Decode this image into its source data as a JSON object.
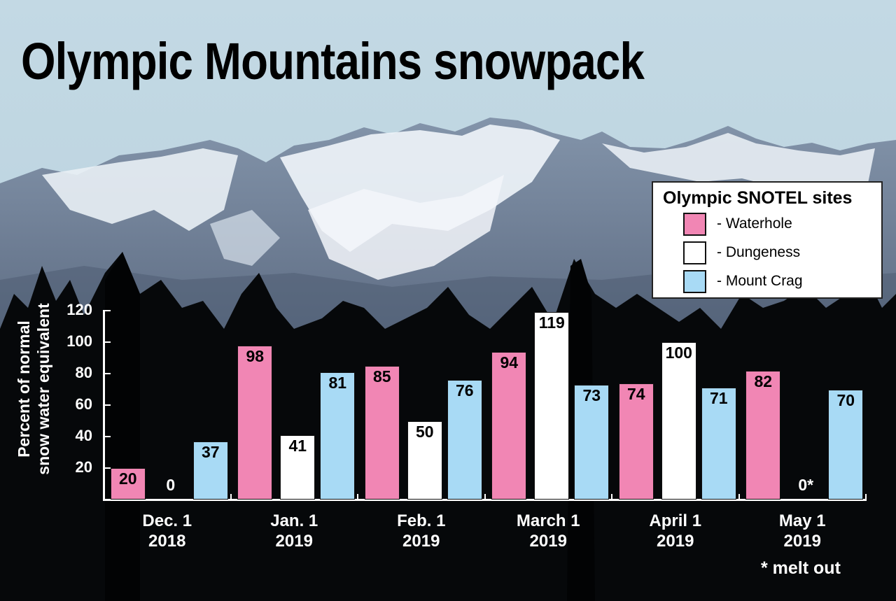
{
  "title": "Olympic Mountains snowpack",
  "background": {
    "sky_color": "#bfd6e2",
    "mountain_snow_color": "#e8eef4",
    "mountain_rock_color": "#6f7f95",
    "forest_color": "#050607"
  },
  "legend": {
    "title": "Olympic SNOTEL sites",
    "items": [
      {
        "label": "- Waterhole",
        "color": "#f186b4"
      },
      {
        "label": "- Dungeness",
        "color": "#ffffff"
      },
      {
        "label": "- Mount Crag",
        "color": "#a8daf5"
      }
    ]
  },
  "y_axis": {
    "label_line1": "Percent of normal",
    "label_line2": "snow water equivalent",
    "ticks": [
      "20",
      "40",
      "60",
      "80",
      "100",
      "120"
    ]
  },
  "footnote": "* melt out",
  "chart_data": {
    "type": "bar",
    "title": "Olympic Mountains snowpack",
    "xlabel": "",
    "ylabel": "Percent of normal snow water equivalent",
    "ylim": [
      0,
      120
    ],
    "yticks": [
      20,
      40,
      60,
      80,
      100,
      120
    ],
    "grid": false,
    "legend_position": "upper right",
    "categories": [
      "Dec. 1 2018",
      "Jan. 1 2019",
      "Feb. 1 2019",
      "March 1 2019",
      "April 1 2019",
      "May 1 2019"
    ],
    "category_lines": [
      [
        "Dec. 1",
        "2018"
      ],
      [
        "Jan. 1",
        "2019"
      ],
      [
        "Feb. 1",
        "2019"
      ],
      [
        "March 1",
        "2019"
      ],
      [
        "April 1",
        "2019"
      ],
      [
        "May 1",
        "2019"
      ]
    ],
    "series": [
      {
        "name": "Waterhole",
        "color": "#f186b4",
        "values": [
          20,
          98,
          85,
          94,
          74,
          82
        ],
        "labels": [
          "20",
          "98",
          "85",
          "94",
          "74",
          "82"
        ]
      },
      {
        "name": "Dungeness",
        "color": "#ffffff",
        "values": [
          0,
          41,
          50,
          119,
          100,
          0
        ],
        "labels": [
          "0",
          "41",
          "50",
          "119",
          "100",
          "0*"
        ]
      },
      {
        "name": "Mount Crag",
        "color": "#a8daf5",
        "values": [
          37,
          81,
          76,
          73,
          71,
          70
        ],
        "labels": [
          "37",
          "81",
          "76",
          "73",
          "71",
          "70"
        ]
      }
    ],
    "annotations": [
      "* melt out"
    ]
  }
}
